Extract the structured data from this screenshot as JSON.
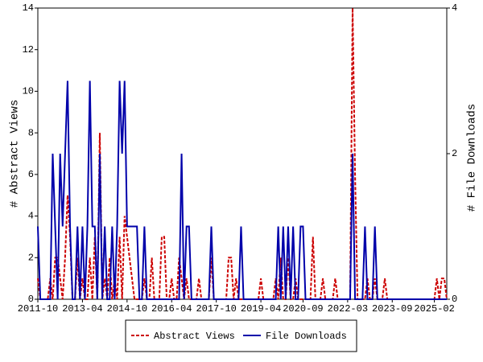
{
  "chart_data": {
    "type": "line",
    "categories": [
      "2011-10",
      null,
      null,
      null,
      null,
      null,
      null,
      null,
      null,
      null,
      null,
      null,
      null,
      null,
      null,
      null,
      null,
      null,
      "2013-04",
      null,
      null,
      null,
      null,
      null,
      null,
      null,
      null,
      null,
      null,
      null,
      null,
      null,
      null,
      null,
      null,
      null,
      "2014-10",
      null,
      null,
      null,
      null,
      null,
      null,
      null,
      null,
      null,
      null,
      null,
      null,
      null,
      null,
      null,
      null,
      null,
      "2016-04",
      null,
      null,
      null,
      null,
      null,
      null,
      null,
      null,
      null,
      null,
      null,
      null,
      null,
      null,
      null,
      null,
      null,
      "2017-10",
      null,
      null,
      null,
      null,
      null,
      null,
      null,
      null,
      null,
      null,
      null,
      null,
      null,
      null,
      null,
      null,
      null,
      "2019-04",
      null,
      null,
      null,
      null,
      null,
      null,
      null,
      null,
      null,
      null,
      null,
      null,
      null,
      null,
      null,
      null,
      "2020-09",
      null,
      null,
      null,
      null,
      null,
      null,
      null,
      null,
      null,
      null,
      null,
      null,
      null,
      null,
      null,
      null,
      null,
      "2022-03",
      null,
      null,
      null,
      null,
      null,
      null,
      null,
      null,
      null,
      null,
      null,
      null,
      null,
      null,
      null,
      null,
      null,
      "2023-09",
      null,
      null,
      null,
      null,
      null,
      null,
      null,
      null,
      null,
      null,
      null,
      null,
      null,
      null,
      null,
      null,
      "2025-02",
      null,
      null,
      null,
      null,
      null
    ],
    "series": [
      {
        "name": "Abstract Views",
        "color": "#cc0000",
        "dash": true,
        "axis": "y",
        "values": [
          1,
          0,
          0,
          0,
          0,
          1,
          0,
          2,
          2,
          1,
          0,
          2,
          5,
          3,
          0,
          0,
          2,
          0,
          1,
          0,
          0,
          2,
          0,
          3,
          0,
          8,
          0,
          1,
          0,
          2,
          0,
          1,
          0,
          3,
          0,
          4,
          3,
          2,
          1,
          0,
          0,
          0,
          0,
          1,
          0,
          0,
          2,
          0,
          0,
          0,
          3,
          3,
          0,
          0,
          1,
          0,
          0,
          2,
          1,
          0,
          1,
          0,
          0,
          0,
          0,
          1,
          0,
          0,
          0,
          0,
          2,
          0,
          0,
          0,
          0,
          0,
          0,
          2,
          2,
          0,
          1,
          0,
          0,
          0,
          0,
          0,
          0,
          0,
          0,
          0,
          1,
          0,
          0,
          0,
          0,
          0,
          1,
          0,
          2,
          0,
          0,
          2,
          0,
          0,
          1,
          0,
          0,
          0,
          0,
          0,
          0,
          3,
          0,
          0,
          0,
          1,
          0,
          0,
          0,
          0,
          1,
          0,
          0,
          0,
          0,
          0,
          0,
          14,
          6,
          0,
          0,
          0,
          0,
          1,
          0,
          0,
          1,
          0,
          0,
          0,
          1,
          0,
          0,
          0,
          0,
          0,
          0,
          0,
          0,
          0,
          0,
          0,
          0,
          0,
          0,
          0,
          0,
          0,
          0,
          0,
          0,
          1,
          0,
          1,
          1,
          0
        ]
      },
      {
        "name": "File Downloads",
        "color": "#0000aa",
        "dash": false,
        "axis": "y2",
        "values": [
          1,
          0,
          0,
          0,
          0,
          0,
          2,
          1,
          0,
          2,
          1,
          2,
          3,
          1,
          0,
          0,
          1,
          0,
          1,
          0,
          1,
          3,
          1,
          1,
          0,
          2,
          0,
          1,
          0,
          0,
          1,
          0,
          1,
          3,
          2,
          3,
          1,
          1,
          1,
          1,
          1,
          0,
          0,
          1,
          0,
          0,
          0,
          0,
          0,
          0,
          0,
          0,
          0,
          0,
          0,
          0,
          0,
          0,
          2,
          0,
          1,
          1,
          0,
          0,
          0,
          0,
          0,
          0,
          0,
          0,
          1,
          0,
          0,
          0,
          0,
          0,
          0,
          0,
          0,
          0,
          0,
          0,
          1,
          0,
          0,
          0,
          0,
          0,
          0,
          0,
          0,
          0,
          0,
          0,
          0,
          0,
          0,
          1,
          0,
          1,
          0,
          1,
          0,
          1,
          0,
          0,
          1,
          1,
          0,
          0,
          0,
          0,
          0,
          0,
          0,
          0,
          0,
          0,
          0,
          0,
          0,
          0,
          0,
          0,
          0,
          0,
          0,
          2,
          0,
          0,
          0,
          0,
          1,
          0,
          0,
          0,
          1,
          0,
          0,
          0,
          0,
          0,
          0,
          0,
          0,
          0,
          0,
          0,
          0,
          0,
          0,
          0,
          0,
          0,
          0,
          0,
          0,
          0,
          0,
          0,
          0,
          0,
          0,
          0,
          0,
          0
        ]
      }
    ],
    "ylabel": "# Abstract Views",
    "y2label": "# File Downloads",
    "ylim": [
      0,
      14
    ],
    "yticks": [
      0,
      2,
      4,
      6,
      8,
      10,
      12,
      14
    ],
    "y2lim": [
      0,
      4
    ],
    "y2ticks": [
      0,
      2,
      4
    ],
    "grid": false,
    "legend": "bottom"
  }
}
